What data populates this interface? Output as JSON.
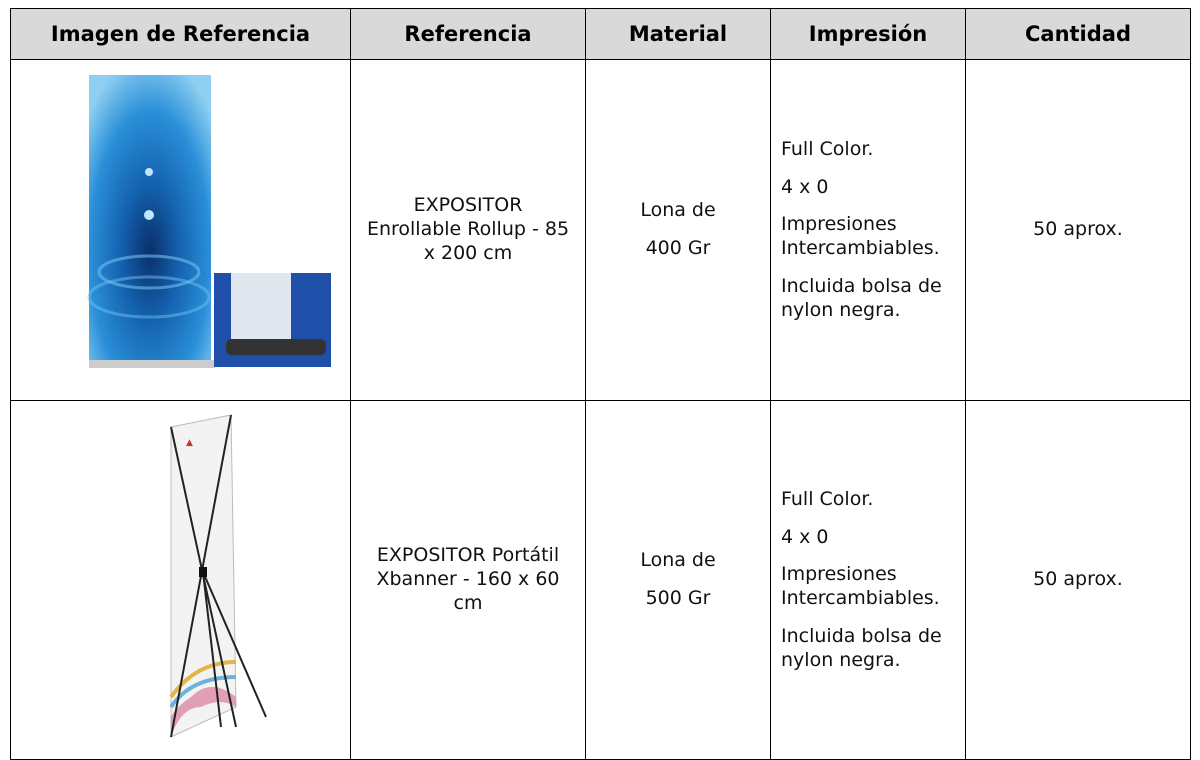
{
  "table": {
    "header": [
      "Imagen de Referencia",
      "Referencia",
      "Material",
      "Impresión",
      "Cantidad"
    ],
    "rows": [
      {
        "reference": "EXPOSITOR Enrollable Rollup - 85 x 200 cm",
        "material": [
          "Lona de",
          "400 Gr"
        ],
        "printing": [
          "Full Color.",
          "4 x 0",
          "Impresiones Intercambiables.",
          "Incluida bolsa de nylon negra."
        ],
        "quantity": "50 aprox."
      },
      {
        "reference": "EXPOSITOR Portátil Xbanner - 160 x 60 cm",
        "material": [
          "Lona de",
          "500 Gr"
        ],
        "printing": [
          "Full Color.",
          "4 x 0",
          "Impresiones Intercambiables.",
          "Incluida bolsa de nylon negra."
        ],
        "quantity": "50 aprox."
      }
    ]
  }
}
